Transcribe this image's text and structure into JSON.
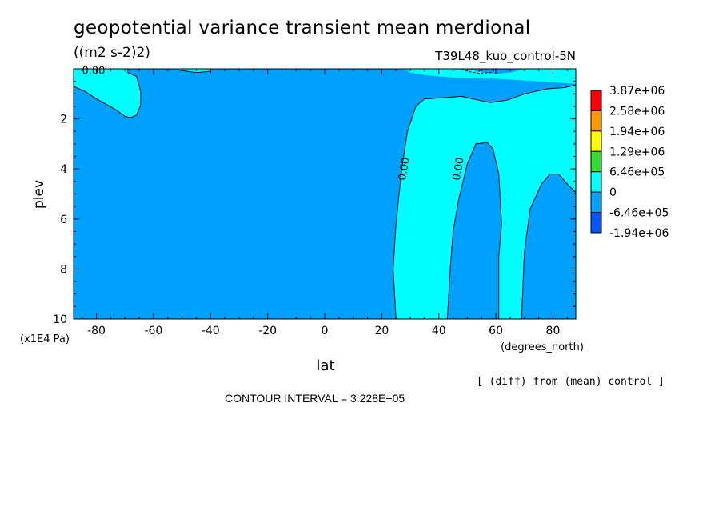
{
  "header": {
    "title": "geopotential variance transient mean merdional",
    "units": "((m2 s-2)2)",
    "experiment": "T39L48_kuo_control-5N"
  },
  "footer": {
    "note": "[ (diff) from (mean) control ]",
    "contour_interval": "CONTOUR INTERVAL = 3.228E+05"
  },
  "chart_data": {
    "type": "contour",
    "xlabel": "lat",
    "xunits": "(degrees_north)",
    "ylabel": "plev",
    "yunits": "(x1E4 Pa)",
    "xlim": [
      -88,
      88
    ],
    "ylim": [
      10,
      0
    ],
    "x_ticks": [
      -80,
      -60,
      -40,
      -20,
      0,
      20,
      40,
      60,
      80
    ],
    "y_ticks": [
      2,
      4,
      6,
      8,
      10
    ],
    "contour_labels": [
      {
        "text": "0.00",
        "x": -81,
        "y": 0.1
      },
      {
        "text": "0.00",
        "x": 28,
        "y": 4.0
      },
      {
        "text": "0.00",
        "x": 47,
        "y": 4.0
      }
    ],
    "colorbar": {
      "colors": [
        "#ff0000",
        "#ff9900",
        "#ffff00",
        "#33dd33",
        "#00ffff",
        "#00a0ff",
        "#0055ff"
      ],
      "labels": [
        "3.87e+06",
        "2.58e+06",
        "1.94e+06",
        "1.29e+06",
        "6.46e+05",
        "0",
        "-6.46e+05",
        "-1.94e+06"
      ]
    },
    "fill_colors": {
      "background": "#00a0ff",
      "positive": "#00ffff"
    },
    "regions": [
      {
        "name": "sh-upper-positive",
        "fill": "positive",
        "points": [
          [
            -88,
            0
          ],
          [
            -69,
            0
          ],
          [
            -69,
            0.15
          ],
          [
            -66,
            0.3
          ],
          [
            -64.5,
            0.9
          ],
          [
            -64.5,
            1.45
          ],
          [
            -66,
            1.85
          ],
          [
            -68,
            1.95
          ],
          [
            -70,
            1.9
          ],
          [
            -73,
            1.65
          ],
          [
            -76,
            1.45
          ],
          [
            -80,
            1.2
          ],
          [
            -84,
            0.9
          ],
          [
            -88,
            0.7
          ]
        ]
      },
      {
        "name": "top-strip-positive",
        "fill": "positive",
        "points": [
          [
            -51,
            0
          ],
          [
            -40,
            0
          ],
          [
            -40,
            0.1
          ],
          [
            -45,
            0.15
          ],
          [
            -51,
            0.05
          ]
        ]
      },
      {
        "name": "nh-positive",
        "fill": "positive",
        "points": [
          [
            28,
            0
          ],
          [
            52,
            0
          ],
          [
            56,
            0.15
          ],
          [
            60,
            0.2
          ],
          [
            65,
            0.15
          ],
          [
            70,
            0
          ],
          [
            88,
            0
          ],
          [
            88,
            4.95
          ],
          [
            85,
            4.6
          ],
          [
            82,
            4.2
          ],
          [
            79,
            4.2
          ],
          [
            76,
            4.6
          ],
          [
            72,
            5.6
          ],
          [
            70,
            7.3
          ],
          [
            69,
            10
          ],
          [
            61,
            10
          ],
          [
            61,
            7.5
          ],
          [
            62,
            6.2
          ],
          [
            61,
            4.2
          ],
          [
            59,
            3.2
          ],
          [
            57,
            2.95
          ],
          [
            53,
            3.0
          ],
          [
            50,
            3.8
          ],
          [
            47,
            5.2
          ],
          [
            45,
            6.5
          ],
          [
            44,
            8
          ],
          [
            43,
            10
          ],
          [
            25,
            10
          ],
          [
            24,
            8
          ],
          [
            25,
            6.2
          ],
          [
            27,
            4
          ],
          [
            29,
            2.5
          ],
          [
            32,
            1.5
          ],
          [
            35,
            1.2
          ],
          [
            42,
            1.15
          ],
          [
            48,
            1.1
          ],
          [
            52,
            1.2
          ],
          [
            58,
            1.35
          ],
          [
            64,
            1.25
          ],
          [
            70,
            1.0
          ],
          [
            78,
            0.8
          ],
          [
            84,
            0.75
          ],
          [
            88,
            0.65
          ],
          [
            88,
            0.6
          ],
          [
            75,
            0.5
          ],
          [
            60,
            0.4
          ],
          [
            45,
            0.35
          ],
          [
            35,
            0.25
          ],
          [
            30,
            0.15
          ]
        ]
      }
    ],
    "contour_lines": [
      {
        "name": "sh-upper-contour",
        "points": [
          [
            -88,
            0.7
          ],
          [
            -84,
            0.9
          ],
          [
            -80,
            1.2
          ],
          [
            -76,
            1.45
          ],
          [
            -73,
            1.65
          ],
          [
            -70,
            1.9
          ],
          [
            -68,
            1.95
          ],
          [
            -66,
            1.85
          ],
          [
            -64.5,
            1.45
          ],
          [
            -64.5,
            0.9
          ],
          [
            -66,
            0.3
          ],
          [
            -69,
            0.15
          ],
          [
            -69,
            0
          ]
        ]
      },
      {
        "name": "nh-left-contour",
        "points": [
          [
            25,
            10
          ],
          [
            24,
            8
          ],
          [
            25,
            6.2
          ],
          [
            27,
            4
          ],
          [
            29,
            2.5
          ],
          [
            32,
            1.5
          ],
          [
            35,
            1.2
          ],
          [
            42,
            1.15
          ],
          [
            48,
            1.1
          ],
          [
            52,
            1.2
          ],
          [
            58,
            1.35
          ],
          [
            64,
            1.25
          ],
          [
            70,
            1.0
          ],
          [
            78,
            0.8
          ],
          [
            84,
            0.75
          ],
          [
            88,
            0.65
          ]
        ]
      },
      {
        "name": "nh-tongue-contour",
        "points": [
          [
            43,
            10
          ],
          [
            44,
            8
          ],
          [
            45,
            6.5
          ],
          [
            47,
            5.2
          ],
          [
            50,
            3.8
          ],
          [
            53,
            3.0
          ],
          [
            57,
            2.95
          ],
          [
            59,
            3.2
          ],
          [
            61,
            4.2
          ],
          [
            62,
            6.2
          ],
          [
            61,
            7.5
          ],
          [
            61,
            10
          ]
        ]
      },
      {
        "name": "nh-right-contour",
        "points": [
          [
            69,
            10
          ],
          [
            70,
            7.3
          ],
          [
            72,
            5.6
          ],
          [
            76,
            4.6
          ],
          [
            79,
            4.2
          ],
          [
            82,
            4.2
          ],
          [
            85,
            4.6
          ],
          [
            88,
            4.95
          ]
        ]
      },
      {
        "name": "top-strip-contour",
        "points": [
          [
            -51,
            0.05
          ],
          [
            -45,
            0.15
          ],
          [
            -40,
            0.1
          ],
          [
            -40,
            0
          ]
        ]
      }
    ],
    "dashed_contours": [
      {
        "name": "negative-top-contour-1",
        "points": [
          [
            48,
            0
          ],
          [
            50,
            0.1
          ],
          [
            54,
            0.18
          ],
          [
            58,
            0.15
          ],
          [
            60,
            0
          ]
        ]
      },
      {
        "name": "negative-top-contour-2",
        "points": [
          [
            51,
            0
          ],
          [
            54,
            0.1
          ],
          [
            57,
            0
          ]
        ]
      }
    ]
  }
}
